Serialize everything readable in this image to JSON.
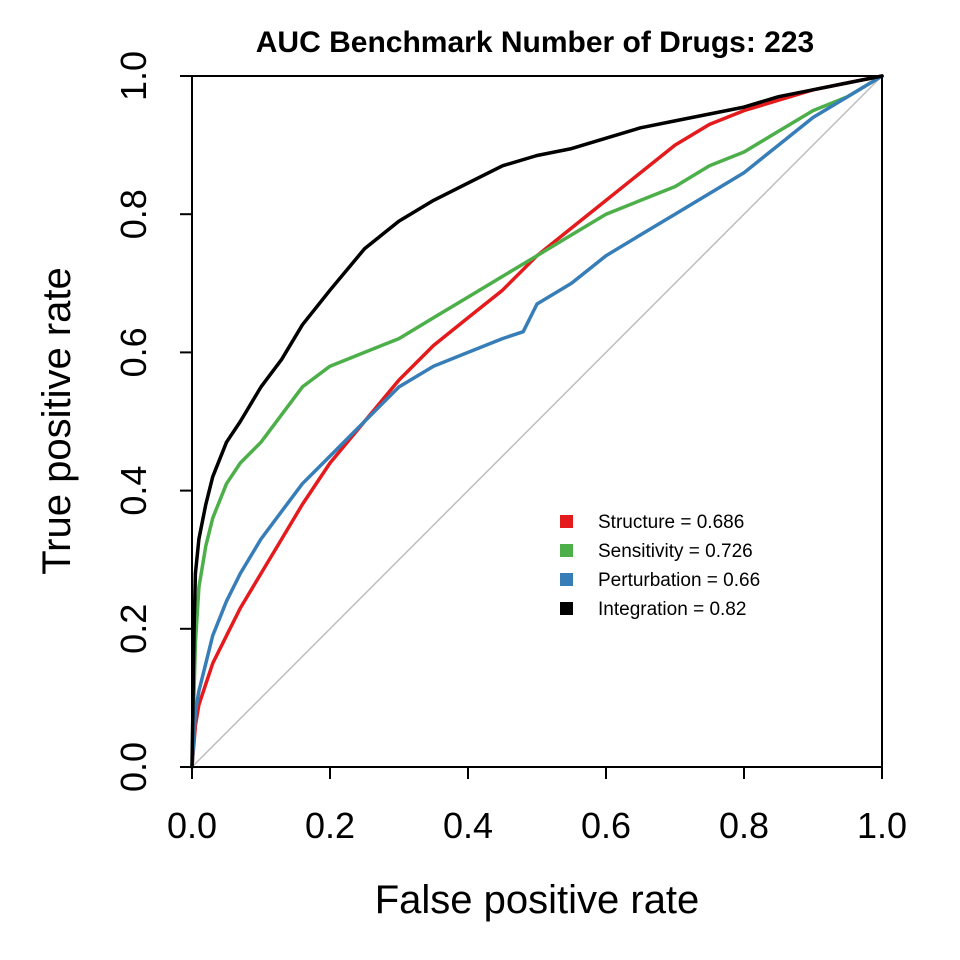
{
  "chart_data": {
    "type": "line",
    "title": "AUC Benchmark Number of Drugs:  223",
    "xlabel": "False positive rate",
    "ylabel": "True positive rate",
    "xlim": [
      0,
      1
    ],
    "ylim": [
      0,
      1
    ],
    "x_ticks": [
      "0.0",
      "0.2",
      "0.4",
      "0.6",
      "0.8",
      "1.0"
    ],
    "y_ticks": [
      "0.0",
      "0.2",
      "0.4",
      "0.6",
      "0.8",
      "1.0"
    ],
    "grid": false,
    "legend_position": "bottom-right",
    "reference_line": {
      "from": [
        0,
        0
      ],
      "to": [
        1,
        1
      ],
      "color": "#bebebe"
    },
    "series": [
      {
        "name": "Structure = 0.686",
        "color": "#e41a1c",
        "x": [
          0,
          0.005,
          0.01,
          0.02,
          0.03,
          0.05,
          0.07,
          0.1,
          0.13,
          0.16,
          0.2,
          0.25,
          0.3,
          0.35,
          0.4,
          0.45,
          0.5,
          0.55,
          0.6,
          0.65,
          0.7,
          0.75,
          0.8,
          0.85,
          0.9,
          0.95,
          1.0
        ],
        "y": [
          0,
          0.06,
          0.09,
          0.12,
          0.15,
          0.19,
          0.23,
          0.28,
          0.33,
          0.38,
          0.44,
          0.5,
          0.56,
          0.61,
          0.65,
          0.69,
          0.74,
          0.78,
          0.82,
          0.86,
          0.9,
          0.93,
          0.95,
          0.965,
          0.98,
          0.99,
          1.0
        ]
      },
      {
        "name": "Sensitivity = 0.726",
        "color": "#4daf4a",
        "x": [
          0,
          0.005,
          0.01,
          0.02,
          0.03,
          0.05,
          0.07,
          0.1,
          0.13,
          0.16,
          0.2,
          0.25,
          0.3,
          0.35,
          0.4,
          0.45,
          0.5,
          0.55,
          0.6,
          0.65,
          0.7,
          0.75,
          0.8,
          0.85,
          0.9,
          0.95,
          1.0
        ],
        "y": [
          0,
          0.18,
          0.26,
          0.32,
          0.36,
          0.41,
          0.44,
          0.47,
          0.51,
          0.55,
          0.58,
          0.6,
          0.62,
          0.65,
          0.68,
          0.71,
          0.74,
          0.77,
          0.8,
          0.82,
          0.84,
          0.87,
          0.89,
          0.92,
          0.95,
          0.97,
          1.0
        ]
      },
      {
        "name": "Perturbation = 0.66",
        "color": "#377eb8",
        "x": [
          0,
          0.005,
          0.01,
          0.02,
          0.03,
          0.05,
          0.07,
          0.1,
          0.13,
          0.16,
          0.2,
          0.25,
          0.3,
          0.35,
          0.4,
          0.45,
          0.48,
          0.5,
          0.55,
          0.6,
          0.65,
          0.7,
          0.75,
          0.8,
          0.85,
          0.9,
          0.95,
          1.0
        ],
        "y": [
          0,
          0.08,
          0.11,
          0.15,
          0.19,
          0.24,
          0.28,
          0.33,
          0.37,
          0.41,
          0.45,
          0.5,
          0.55,
          0.58,
          0.6,
          0.62,
          0.63,
          0.67,
          0.7,
          0.74,
          0.77,
          0.8,
          0.83,
          0.86,
          0.9,
          0.94,
          0.97,
          1.0
        ]
      },
      {
        "name": "Integration = 0.82",
        "color": "#000000",
        "x": [
          0,
          0.003,
          0.005,
          0.01,
          0.02,
          0.03,
          0.05,
          0.07,
          0.1,
          0.13,
          0.16,
          0.2,
          0.25,
          0.3,
          0.35,
          0.4,
          0.45,
          0.5,
          0.55,
          0.6,
          0.65,
          0.7,
          0.75,
          0.8,
          0.85,
          0.9,
          0.95,
          1.0
        ],
        "y": [
          0,
          0.2,
          0.28,
          0.33,
          0.38,
          0.42,
          0.47,
          0.5,
          0.55,
          0.59,
          0.64,
          0.69,
          0.75,
          0.79,
          0.82,
          0.845,
          0.87,
          0.885,
          0.895,
          0.91,
          0.925,
          0.935,
          0.945,
          0.955,
          0.97,
          0.98,
          0.99,
          1.0
        ]
      }
    ]
  }
}
